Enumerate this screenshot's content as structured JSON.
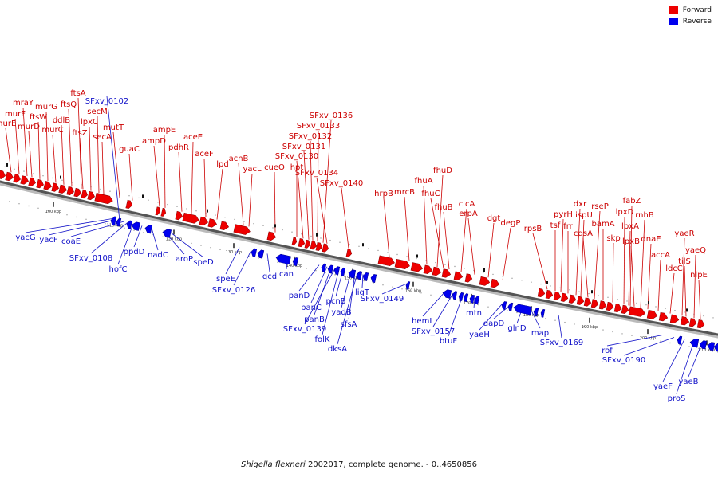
{
  "legend": {
    "forward": {
      "label": "Forward",
      "color": "#ee0000"
    },
    "reverse": {
      "label": "Reverse",
      "color": "#0000ee"
    }
  },
  "caption": {
    "species": "Shigella flexneri",
    "rest": " 2002017, complete genome. - 0..4650856"
  },
  "ticks": [
    "100 kbp",
    "110 kbp",
    "120 kbp",
    "130 kbp",
    "140 kbp",
    "150 kbp",
    "160 kbp",
    "170 kbp",
    "180 kbp",
    "190 kbp",
    "200 kbp",
    "210 kbp"
  ],
  "forward_labels": [
    "murE",
    "murF",
    "mraY",
    "murD",
    "ftsW",
    "murG",
    "murC",
    "ddlB",
    "ftsQ",
    "ftsA",
    "ftsZ",
    "lpxC",
    "secM",
    "secA",
    "mutT",
    "guaC",
    "ampD",
    "ampE",
    "pdhR",
    "aceE",
    "aceF",
    "lpd",
    "acnB",
    "yacL",
    "cueO",
    "hpt",
    "SFxv_0130",
    "SFxv_0131",
    "SFxv_0132",
    "SFxv_0133",
    "SFxv_0136",
    "SFxv_0134",
    "SFxv_0140",
    "hrpB",
    "mrcB",
    "fhuA",
    "fhuD",
    "fhuC",
    "fhuB",
    "clcA",
    "erpA",
    "dgt",
    "degP",
    "rpsB",
    "tsf",
    "pyrH",
    "frr",
    "dxr",
    "ispU",
    "cdsA",
    "rseP",
    "bamA",
    "skp",
    "lpxD",
    "fabZ",
    "lpxA",
    "lpxB",
    "rnhB",
    "dnaE",
    "accA",
    "ldcC",
    "yaeR",
    "tilS",
    "yaeQ",
    "nlpE"
  ],
  "reverse_labels": [
    "SFxv_0102",
    "yacG",
    "yacF",
    "coaE",
    "SFxv_0108",
    "hofC",
    "ppdD",
    "nadC",
    "aroP",
    "speD",
    "speE",
    "SFxv_0126",
    "gcd",
    "can",
    "panD",
    "panC",
    "panB",
    "SFxv_0139",
    "folK",
    "pcnB",
    "yadB",
    "sfsA",
    "dksA",
    "ligT",
    "SFxv_0149",
    "hemL",
    "SFxv_0157",
    "btuF",
    "mtn",
    "yaeH",
    "dapD",
    "glnD",
    "map",
    "SFxv_0169",
    "rof",
    "SFxv_0190",
    "yaeF",
    "proS",
    "yaeB"
  ]
}
